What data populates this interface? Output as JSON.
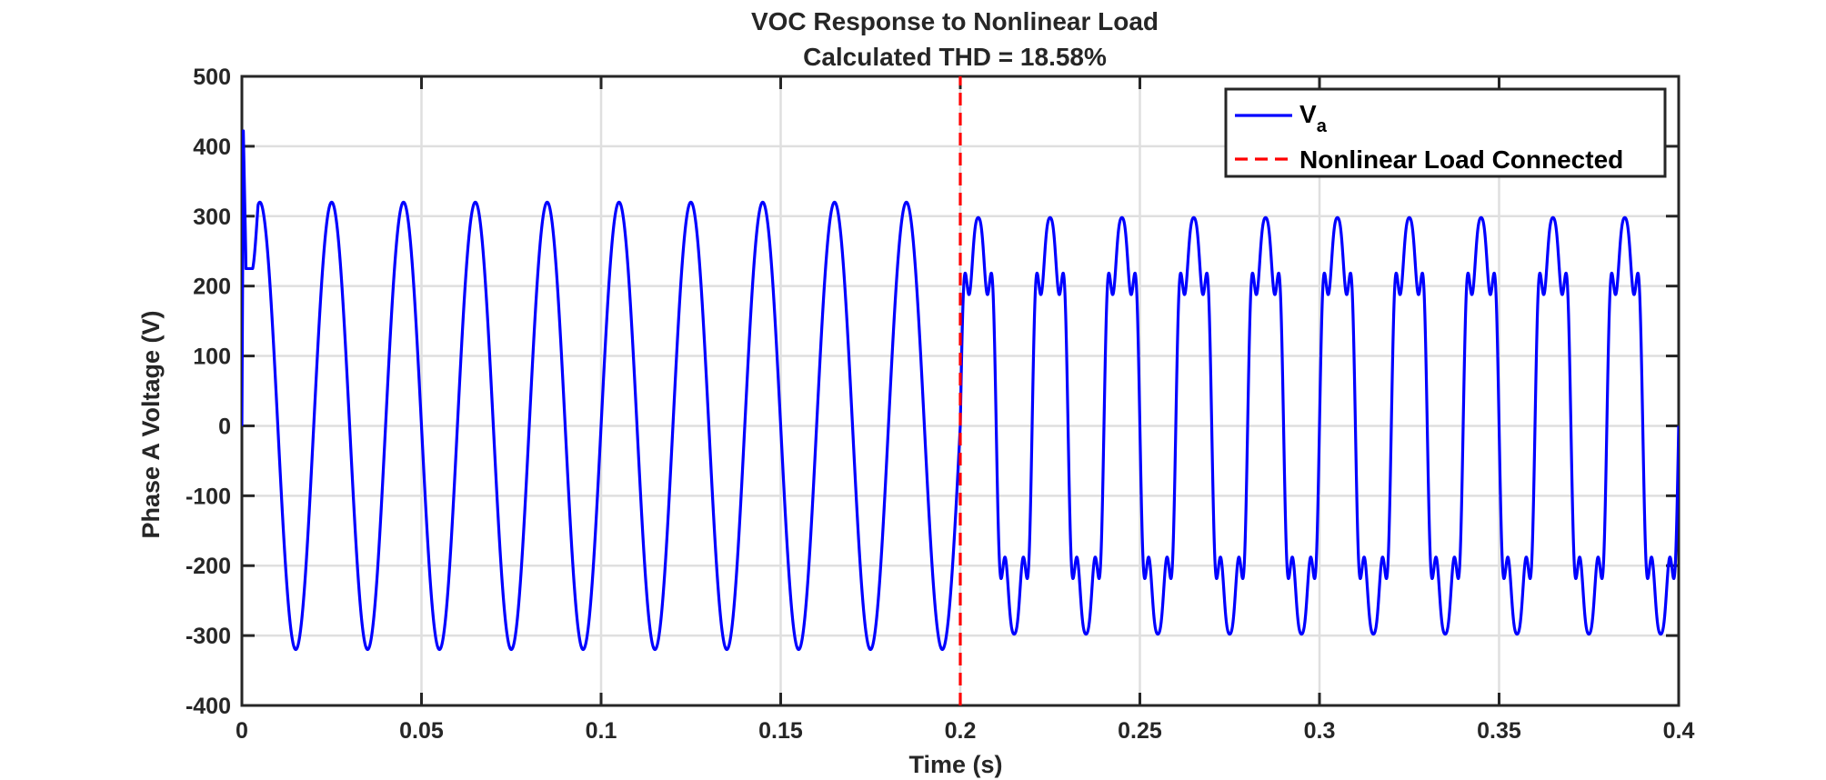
{
  "chart_data": {
    "type": "line",
    "title": "VOC Response to Nonlinear Load",
    "subtitle": "Calculated THD = 18.58%",
    "xlabel": "Time (s)",
    "ylabel": "Phase A Voltage (V)",
    "xlim": [
      0,
      0.4
    ],
    "ylim": [
      -400,
      500
    ],
    "xticks": [
      0,
      0.05,
      0.1,
      0.15,
      0.2,
      0.25,
      0.3,
      0.35,
      0.4
    ],
    "xtick_labels": [
      "0",
      "0.05",
      "0.1",
      "0.15",
      "0.2",
      "0.25",
      "0.3",
      "0.35",
      "0.4"
    ],
    "yticks": [
      -400,
      -300,
      -200,
      -100,
      0,
      100,
      200,
      300,
      400,
      500
    ],
    "ytick_labels": [
      "-400",
      "-300",
      "-200",
      "-100",
      "0",
      "100",
      "200",
      "300",
      "400",
      "500"
    ],
    "grid": true,
    "legend_position": "top-right",
    "series": [
      {
        "name": "V",
        "name_subscript": "a",
        "style": "solid",
        "color": "#0000ff",
        "description_of_signal": {
          "frequency_hz": 50,
          "amplitude_before": 320,
          "peak_after": 335,
          "trough_after": -335,
          "startup_spike_peak": 422,
          "startup_plateau": 225,
          "startup_end_time": 0.003
        }
      },
      {
        "name": "Nonlinear Load Connected",
        "style": "dashed",
        "color": "#ff0000",
        "x": [
          0.2,
          0.2
        ],
        "y": [
          -400,
          500
        ]
      }
    ],
    "event_time": 0.2
  }
}
